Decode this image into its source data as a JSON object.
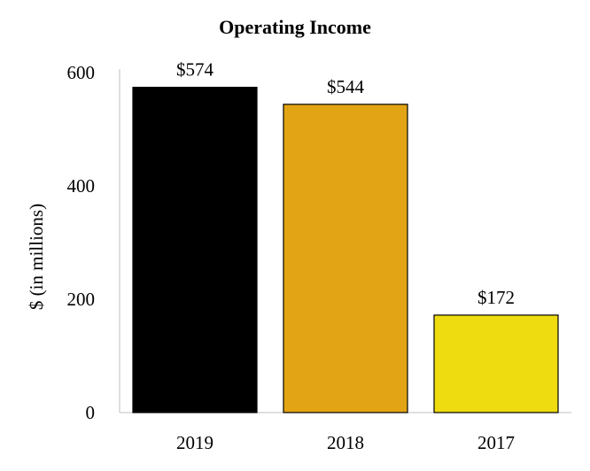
{
  "chart_data": {
    "type": "bar",
    "title": "Operating Income",
    "xlabel": "",
    "ylabel": "$ (in millions)",
    "categories": [
      "2019",
      "2018",
      "2017"
    ],
    "values": [
      574,
      544,
      172
    ],
    "data_labels": [
      "$574",
      "$544",
      "$172"
    ],
    "bar_colors": [
      "#000000",
      "#E2A415",
      "#EEDB10"
    ],
    "ylim": [
      0,
      600
    ],
    "yticks": [
      0,
      200,
      400,
      600
    ],
    "grid": false,
    "legend": "none"
  }
}
